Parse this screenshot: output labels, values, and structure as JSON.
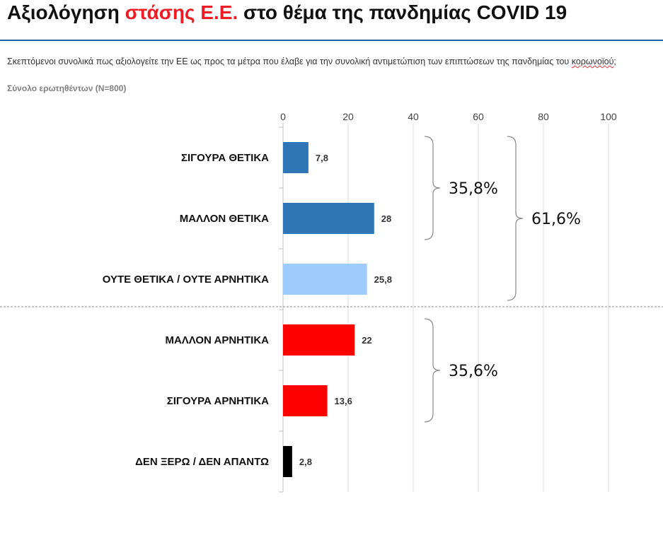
{
  "title": {
    "part1": "Αξιολόγηση ",
    "highlight": "στάσης Ε.Ε.",
    "part2": " στο θέμα της πανδημίας COVID 19"
  },
  "question": {
    "text": "Σκεπτόμενοι συνολικά πως αξιολογείτε την ΕΕ ως προς τα μέτρα που έλαβε για την συνολική αντιμετώπιση των επιπτώσεων της πανδημίας του ",
    "underlined": "κορωνοϊού",
    "end": ";"
  },
  "base_note": "Σύνολο ερωτηθέντων (Ν=800)",
  "colors": {
    "title_highlight": "#ee1c25",
    "title_rule": "#1f5fa8",
    "positive": "#2e75b6",
    "neutral": "#9dcbfb",
    "negative": "#ff0000",
    "dont_know": "#000000"
  },
  "chart_data": {
    "type": "bar",
    "orientation": "horizontal",
    "categories": [
      "ΣΙΓΟΥΡΑ ΘΕΤΙΚΑ",
      "ΜΑΛΛΟΝ ΘΕΤΙΚΑ",
      "ΟΥΤΕ ΘΕΤΙΚΑ / ΟΥΤΕ ΑΡΝΗΤΙΚΑ",
      "ΜΑΛΛΟΝ ΑΡΝΗΤΙΚΑ",
      "ΣΙΓΟΥΡΑ ΑΡΝΗΤΙΚΑ",
      "ΔΕΝ ΞΕΡΩ / ΔΕΝ ΑΠΑΝΤΩ"
    ],
    "values": [
      7.8,
      28,
      25.8,
      22,
      13.6,
      2.8
    ],
    "value_labels": [
      "7,8",
      "28",
      "25,8",
      "22",
      "13,6",
      "2,8"
    ],
    "bar_colors": [
      "#2e75b6",
      "#2e75b6",
      "#9dcbfb",
      "#ff0000",
      "#ff0000",
      "#000000"
    ],
    "xlim": [
      0,
      100
    ],
    "xticks": [
      0,
      20,
      40,
      60,
      80,
      100
    ],
    "axis_position": "top",
    "grid": true,
    "groups": [
      {
        "label": "35,8%",
        "from": 0,
        "to": 1
      },
      {
        "label": "61,6%",
        "from": 0,
        "to": 2
      },
      {
        "label": "35,6%",
        "from": 3,
        "to": 4
      }
    ]
  }
}
